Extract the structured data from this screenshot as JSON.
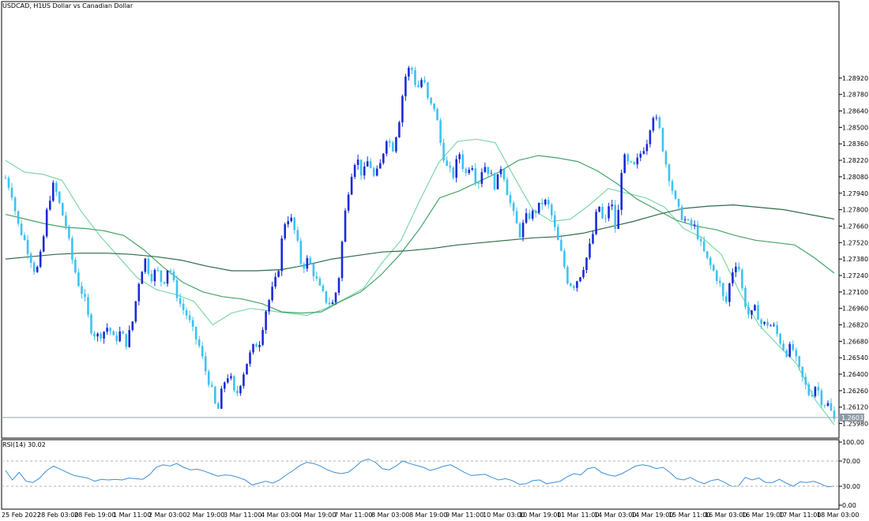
{
  "header": {
    "symbol": "USDCAD, H1:",
    "description": "US Dollar vs Canadian Dollar"
  },
  "colors": {
    "bull": "#1a2bd6",
    "bear": "#3cc3f0",
    "ma_fast": "#7fd8a8",
    "ma_mid": "#45a36a",
    "ma_slow": "#2e6b45",
    "rsi_line": "#3a8fd8",
    "grid_dash": "#b0b0b0",
    "frame": "#000000",
    "price_marker_bg": "#8c9aa6"
  },
  "current_price": "1.26032",
  "rsi": {
    "label": "RSI(14) 30.02",
    "value": 30.02,
    "levels": [
      "100.00",
      "70.00",
      "30.00",
      "0.00"
    ]
  },
  "chart_data": [
    {
      "type": "candlestick",
      "title": "USDCAD, H1: US Dollar vs Canadian Dollar",
      "ylim": [
        1.2591,
        1.2951
      ],
      "y_ticks": [
        "1.28920",
        "1.28780",
        "1.28640",
        "1.28500",
        "1.28360",
        "1.28220",
        "1.28080",
        "1.27940",
        "1.27800",
        "1.27660",
        "1.27520",
        "1.27380",
        "1.27240",
        "1.27100",
        "1.26960",
        "1.26820",
        "1.26680",
        "1.26540",
        "1.26400",
        "1.26260",
        "1.26120",
        "1.25980"
      ],
      "x_ticks": [
        "25 Feb 2022",
        "28 Feb 03:00",
        "28 Feb 19:00",
        "1 Mar 11:00",
        "2 Mar 03:00",
        "2 Mar 19:00",
        "3 Mar 11:00",
        "4 Mar 03:00",
        "4 Mar 19:00",
        "7 Mar 11:00",
        "8 Mar 03:00",
        "8 Mar 19:00",
        "9 Mar 11:00",
        "10 Mar 03:00",
        "10 Mar 19:00",
        "11 Mar 11:00",
        "14 Mar 03:00",
        "14 Mar 19:00",
        "15 Mar 11:00",
        "16 Mar 03:00",
        "16 Mar 19:00",
        "17 Mar 11:00",
        "18 Mar 03:00"
      ],
      "close_path": [
        1.2807,
        1.2795,
        1.2768,
        1.2756,
        1.2741,
        1.2725,
        1.2745,
        1.2785,
        1.2802,
        1.2783,
        1.2766,
        1.2738,
        1.2718,
        1.2705,
        1.268,
        1.2672,
        1.2675,
        1.2681,
        1.2668,
        1.2676,
        1.2666,
        1.2685,
        1.2718,
        1.2739,
        1.2722,
        1.2729,
        1.2716,
        1.2734,
        1.2713,
        1.2698,
        1.269,
        1.2676,
        1.2664,
        1.2644,
        1.2628,
        1.2606,
        1.2632,
        1.2641,
        1.2619,
        1.2636,
        1.2652,
        1.2663,
        1.2668,
        1.2694,
        1.271,
        1.2725,
        1.2768,
        1.2775,
        1.2758,
        1.273,
        1.2738,
        1.2725,
        1.2712,
        1.2703,
        1.2699,
        1.2717,
        1.2772,
        1.2808,
        1.2826,
        1.2808,
        1.2823,
        1.2806,
        1.2819,
        1.2842,
        1.2832,
        1.2854,
        1.2892,
        1.2903,
        1.2882,
        1.2893,
        1.2869,
        1.2867,
        1.2834,
        1.2815,
        1.2809,
        1.2829,
        1.2809,
        1.2822,
        1.28,
        1.2819,
        1.2812,
        1.2799,
        1.2819,
        1.2794,
        1.2775,
        1.2759,
        1.2773,
        1.2776,
        1.2781,
        1.2788,
        1.2781,
        1.2759,
        1.274,
        1.2718,
        1.2716,
        1.2725,
        1.2738,
        1.2756,
        1.2786,
        1.2765,
        1.2791,
        1.2757,
        1.2826,
        1.2818,
        1.2816,
        1.2828,
        1.2838,
        1.2862,
        1.2851,
        1.2823,
        1.2802,
        1.2781,
        1.2773,
        1.2767,
        1.2765,
        1.2749,
        1.2737,
        1.2728,
        1.2718,
        1.2697,
        1.2726,
        1.2738,
        1.2705,
        1.2688,
        1.2696,
        1.2682,
        1.2683,
        1.268,
        1.2669,
        1.2658,
        1.2664,
        1.2646,
        1.2633,
        1.2621,
        1.2632,
        1.2616,
        1.2614,
        1.2601
      ],
      "series": [
        {
          "name": "",
          "values": [
            1.2822,
            1.2812,
            1.281,
            1.2805,
            1.2779,
            1.2758,
            1.274,
            1.2722,
            1.2712,
            1.2708,
            1.2702,
            1.2682,
            1.2692,
            1.2696,
            1.2694,
            1.2692,
            1.269,
            1.2696,
            1.2704,
            1.2713,
            1.2735,
            1.2754,
            1.2788,
            1.282,
            1.2838,
            1.284,
            1.2837,
            1.2808,
            1.278,
            1.277,
            1.2772,
            1.2784,
            1.2798,
            1.2794,
            1.279,
            1.2782,
            1.2764,
            1.2756,
            1.2742,
            1.2709,
            1.2682,
            1.2665,
            1.2649,
            1.2618,
            1.2597
          ]
        },
        {
          "name": "",
          "values": [
            1.2776,
            1.2772,
            1.2768,
            1.2765,
            1.2764,
            1.2762,
            1.2758,
            1.2746,
            1.2731,
            1.2718,
            1.271,
            1.2706,
            1.2704,
            1.27,
            1.2693,
            1.2692,
            1.2693,
            1.2702,
            1.271,
            1.2724,
            1.2742,
            1.2764,
            1.279,
            1.2796,
            1.2804,
            1.2812,
            1.2822,
            1.2826,
            1.2824,
            1.2821,
            1.2813,
            1.2802,
            1.2789,
            1.278,
            1.2771,
            1.2766,
            1.2763,
            1.2758,
            1.2754,
            1.2752,
            1.275,
            1.2739,
            1.2726
          ]
        },
        {
          "name": "",
          "values": [
            1.2738,
            1.274,
            1.2742,
            1.2743,
            1.2743,
            1.2742,
            1.274,
            1.2737,
            1.2732,
            1.2728,
            1.2728,
            1.2729,
            1.2733,
            1.2738,
            1.2741,
            1.2744,
            1.2745,
            1.2747,
            1.275,
            1.2752,
            1.2754,
            1.2756,
            1.2757,
            1.276,
            1.2765,
            1.277,
            1.2776,
            1.2781,
            1.2783,
            1.2784,
            1.2782,
            1.278,
            1.2776,
            1.2772
          ]
        }
      ]
    },
    {
      "type": "line",
      "title": "RSI(14) 30.02",
      "ylim": [
        0,
        100
      ],
      "y_ticks": [
        "100.00",
        "70.00",
        "30.00",
        "0.00"
      ],
      "series": [
        {
          "name": "RSI(14)",
          "values": [
            55,
            40,
            52,
            38,
            36,
            43,
            55,
            62,
            57,
            52,
            47,
            45,
            43,
            38,
            41,
            40,
            41,
            40,
            43,
            42,
            41,
            48,
            60,
            64,
            62,
            66,
            60,
            56,
            57,
            54,
            50,
            46,
            48,
            47,
            44,
            40,
            32,
            35,
            38,
            35,
            40,
            48,
            55,
            63,
            68,
            66,
            62,
            56,
            52,
            50,
            52,
            60,
            70,
            73,
            68,
            58,
            56,
            62,
            70,
            66,
            63,
            60,
            55,
            58,
            62,
            64,
            58,
            52,
            47,
            48,
            49,
            44,
            40,
            42,
            39,
            33,
            34,
            39,
            40,
            34,
            36,
            38,
            45,
            50,
            48,
            58,
            60,
            52,
            48,
            46,
            50,
            56,
            62,
            64,
            62,
            58,
            60,
            52,
            42,
            40,
            44,
            38,
            34,
            39,
            41,
            36,
            30,
            30,
            44,
            40,
            43,
            36,
            36,
            41,
            35,
            30,
            37,
            36,
            38,
            34,
            29,
            30
          ]
        }
      ]
    }
  ]
}
